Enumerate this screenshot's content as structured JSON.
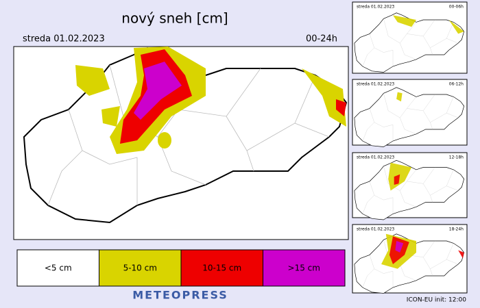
{
  "header": {
    "title": "nový sneh [cm]",
    "date": "streda 01.02.2023",
    "period": "00-24h"
  },
  "legend": [
    {
      "label": "<5 cm",
      "color": "#ffffff"
    },
    {
      "label": "5-10 cm",
      "color": "#d9d400"
    },
    {
      "label": "10-15 cm",
      "color": "#ee0000"
    },
    {
      "label": ">15 cm",
      "color": "#cc00cc"
    }
  ],
  "brand": "METEOPRESS",
  "panels": [
    {
      "date": "streda 01.02.2023",
      "period": "00-06h"
    },
    {
      "date": "streda 01.02.2023",
      "period": "06-12h"
    },
    {
      "date": "streda 01.02.2023",
      "period": "12-18h"
    },
    {
      "date": "streda 01.02.2023",
      "period": "18-24h"
    }
  ],
  "footer": "ICON-EU  init:  12:00"
}
